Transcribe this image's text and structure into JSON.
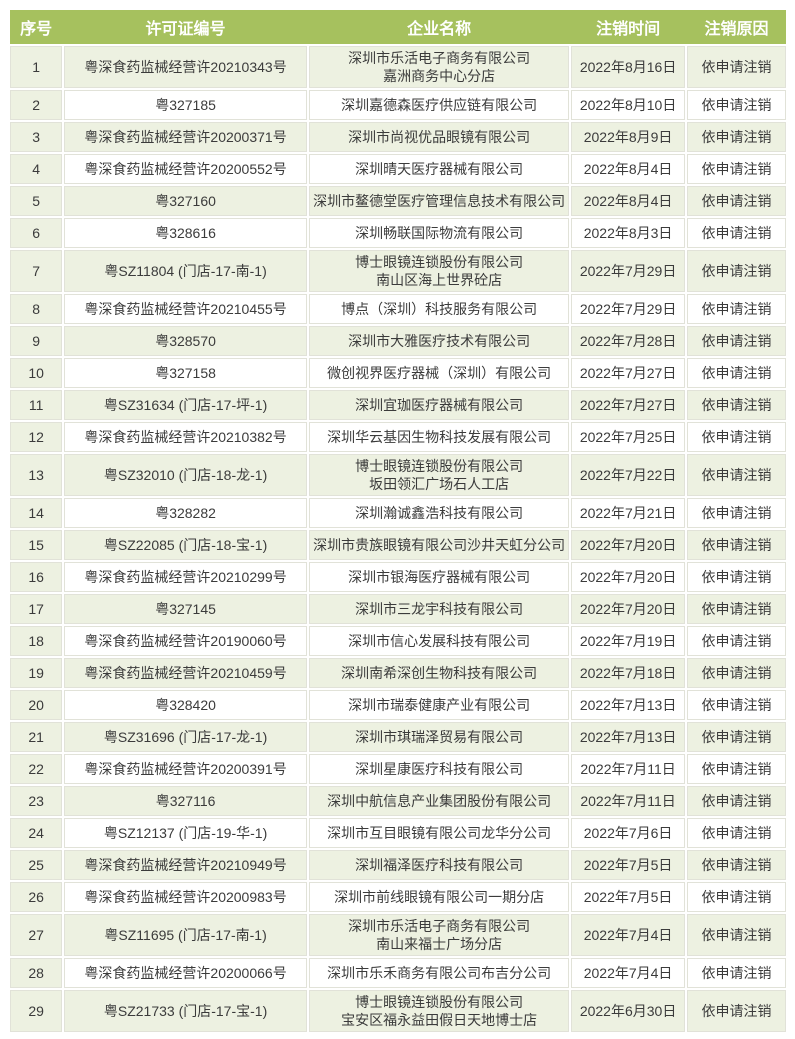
{
  "colors": {
    "header_bg": "#a6c15e",
    "header_text": "#ffffff",
    "row_alt_bg": "#edf1e1",
    "body_text": "#3b3b3b"
  },
  "table": {
    "columns": [
      {
        "key": "no",
        "label": "序号"
      },
      {
        "key": "license",
        "label": "许可证编号"
      },
      {
        "key": "company",
        "label": "企业名称"
      },
      {
        "key": "date",
        "label": "注销时间"
      },
      {
        "key": "reason",
        "label": "注销原因"
      }
    ],
    "rows": [
      {
        "no": "1",
        "license": "粤深食药监械经营许20210343号",
        "company": [
          "深圳市乐活电子商务有限公司",
          "嘉洲商务中心分店"
        ],
        "date": "2022年8月16日",
        "reason": "依申请注销"
      },
      {
        "no": "2",
        "license": "粤327185",
        "company": "深圳嘉德森医疗供应链有限公司",
        "date": "2022年8月10日",
        "reason": "依申请注销"
      },
      {
        "no": "3",
        "license": "粤深食药监械经营许20200371号",
        "company": "深圳市尚视优品眼镜有限公司",
        "date": "2022年8月9日",
        "reason": "依申请注销"
      },
      {
        "no": "4",
        "license": "粤深食药监械经营许20200552号",
        "company": "深圳晴天医疗器械有限公司",
        "date": "2022年8月4日",
        "reason": "依申请注销"
      },
      {
        "no": "5",
        "license": "粤327160",
        "company": "深圳市鳌德堂医疗管理信息技术有限公司",
        "date": "2022年8月4日",
        "reason": "依申请注销"
      },
      {
        "no": "6",
        "license": "粤328616",
        "company": "深圳畅联国际物流有限公司",
        "date": "2022年8月3日",
        "reason": "依申请注销"
      },
      {
        "no": "7",
        "license": "粤SZ11804 (门店-17-南-1)",
        "company": [
          "博士眼镜连锁股份有限公司",
          "南山区海上世界砼店"
        ],
        "date": "2022年7月29日",
        "reason": "依申请注销"
      },
      {
        "no": "8",
        "license": "粤深食药监械经营许20210455号",
        "company": "博点（深圳）科技服务有限公司",
        "date": "2022年7月29日",
        "reason": "依申请注销"
      },
      {
        "no": "9",
        "license": "粤328570",
        "company": "深圳市大雅医疗技术有限公司",
        "date": "2022年7月28日",
        "reason": "依申请注销"
      },
      {
        "no": "10",
        "license": "粤327158",
        "company": "微创视界医疗器械（深圳）有限公司",
        "date": "2022年7月27日",
        "reason": "依申请注销"
      },
      {
        "no": "11",
        "license": "粤SZ31634 (门店-17-坪-1)",
        "company": "深圳宜珈医疗器械有限公司",
        "date": "2022年7月27日",
        "reason": "依申请注销"
      },
      {
        "no": "12",
        "license": "粤深食药监械经营许20210382号",
        "company": "深圳华云基因生物科技发展有限公司",
        "date": "2022年7月25日",
        "reason": "依申请注销"
      },
      {
        "no": "13",
        "license": "粤SZ32010 (门店-18-龙-1)",
        "company": [
          "博士眼镜连锁股份有限公司",
          "坂田领汇广场石人工店"
        ],
        "date": "2022年7月22日",
        "reason": "依申请注销"
      },
      {
        "no": "14",
        "license": "粤328282",
        "company": "深圳瀚诚鑫浩科技有限公司",
        "date": "2022年7月21日",
        "reason": "依申请注销"
      },
      {
        "no": "15",
        "license": "粤SZ22085 (门店-18-宝-1)",
        "company": "深圳市贵族眼镜有限公司沙井天虹分公司",
        "date": "2022年7月20日",
        "reason": "依申请注销"
      },
      {
        "no": "16",
        "license": "粤深食药监械经营许20210299号",
        "company": "深圳市银海医疗器械有限公司",
        "date": "2022年7月20日",
        "reason": "依申请注销"
      },
      {
        "no": "17",
        "license": "粤327145",
        "company": "深圳市三龙宇科技有限公司",
        "date": "2022年7月20日",
        "reason": "依申请注销"
      },
      {
        "no": "18",
        "license": "粤深食药监械经营许20190060号",
        "company": "深圳市信心发展科技有限公司",
        "date": "2022年7月19日",
        "reason": "依申请注销"
      },
      {
        "no": "19",
        "license": "粤深食药监械经营许20210459号",
        "company": "深圳南希深创生物科技有限公司",
        "date": "2022年7月18日",
        "reason": "依申请注销"
      },
      {
        "no": "20",
        "license": "粤328420",
        "company": "深圳市瑞泰健康产业有限公司",
        "date": "2022年7月13日",
        "reason": "依申请注销"
      },
      {
        "no": "21",
        "license": "粤SZ31696 (门店-17-龙-1)",
        "company": "深圳市琪瑞泽贸易有限公司",
        "date": "2022年7月13日",
        "reason": "依申请注销"
      },
      {
        "no": "22",
        "license": "粤深食药监械经营许20200391号",
        "company": "深圳星康医疗科技有限公司",
        "date": "2022年7月11日",
        "reason": "依申请注销"
      },
      {
        "no": "23",
        "license": "粤327116",
        "company": "深圳中航信息产业集团股份有限公司",
        "date": "2022年7月11日",
        "reason": "依申请注销"
      },
      {
        "no": "24",
        "license": "粤SZ12137 (门店-19-华-1)",
        "company": "深圳市互目眼镜有限公司龙华分公司",
        "date": "2022年7月6日",
        "reason": "依申请注销"
      },
      {
        "no": "25",
        "license": "粤深食药监械经营许20210949号",
        "company": "深圳福泽医疗科技有限公司",
        "date": "2022年7月5日",
        "reason": "依申请注销"
      },
      {
        "no": "26",
        "license": "粤深食药监械经营许20200983号",
        "company": "深圳市前线眼镜有限公司一期分店",
        "date": "2022年7月5日",
        "reason": "依申请注销"
      },
      {
        "no": "27",
        "license": "粤SZ11695 (门店-17-南-1)",
        "company": [
          "深圳市乐活电子商务有限公司",
          "南山来福士广场分店"
        ],
        "date": "2022年7月4日",
        "reason": "依申请注销"
      },
      {
        "no": "28",
        "license": "粤深食药监械经营许20200066号",
        "company": "深圳市乐禾商务有限公司布吉分公司",
        "date": "2022年7月4日",
        "reason": "依申请注销"
      },
      {
        "no": "29",
        "license": "粤SZ21733 (门店-17-宝-1)",
        "company": [
          "博士眼镜连锁股份有限公司",
          "宝安区福永益田假日天地博士店"
        ],
        "date": "2022年6月30日",
        "reason": "依申请注销"
      }
    ]
  }
}
